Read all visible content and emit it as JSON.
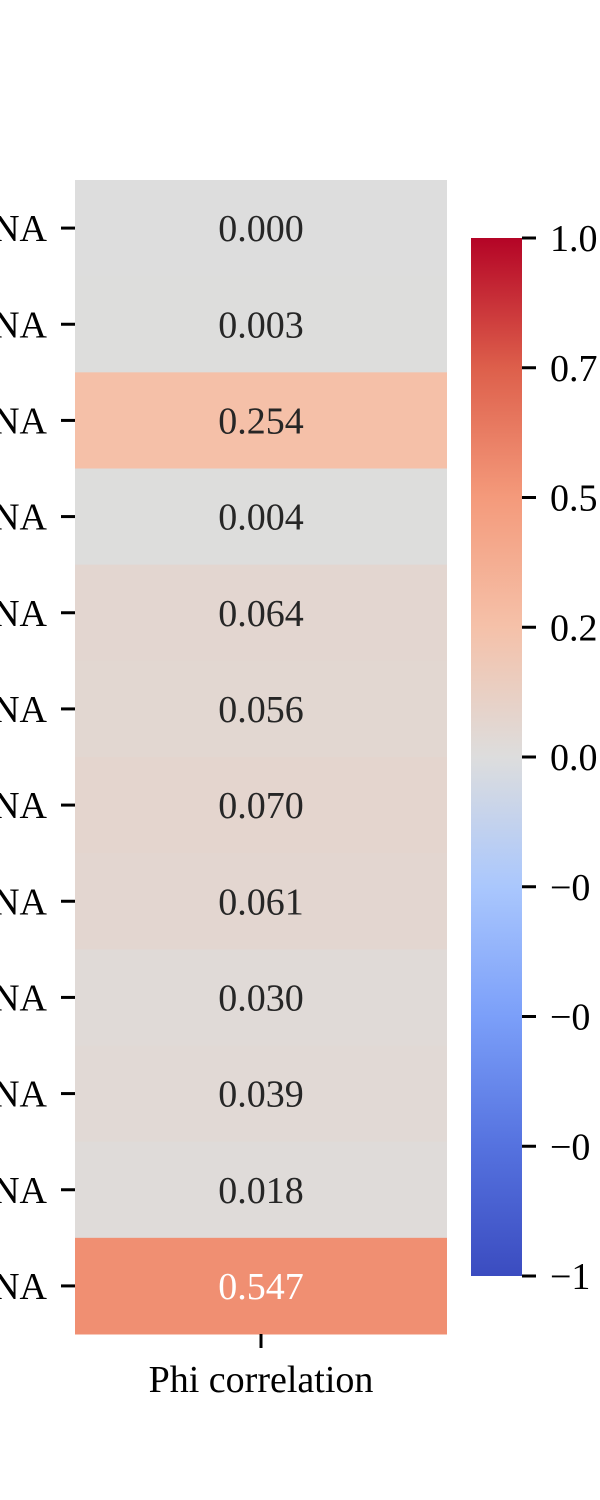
{
  "chart_data": {
    "type": "heatmap",
    "row_labels": [
      "NA",
      "NA",
      "NA",
      "NA",
      "NA",
      "NA",
      "NA",
      "NA",
      "NA",
      "NA",
      "NA",
      "NA"
    ],
    "column_labels": [
      "Phi correlation"
    ],
    "values": [
      0.0,
      0.003,
      0.254,
      0.004,
      0.064,
      0.056,
      0.07,
      0.061,
      0.03,
      0.039,
      0.018,
      0.547
    ],
    "cell_labels": [
      "0.000",
      "0.003",
      "0.254",
      "0.004",
      "0.064",
      "0.056",
      "0.070",
      "0.061",
      "0.030",
      "0.039",
      "0.018",
      "0.547"
    ],
    "colorbar": {
      "colormap": "coolwarm",
      "range": [
        -1,
        1
      ],
      "tick_labels": [
        "1.0",
        "0.7",
        "0.5",
        "0.2",
        "0.0",
        "−0",
        "−0",
        "−0",
        "−1"
      ]
    },
    "colors": {
      "low": "#3b4cc0",
      "mid": "#dddddd",
      "high": "#b40426"
    }
  }
}
